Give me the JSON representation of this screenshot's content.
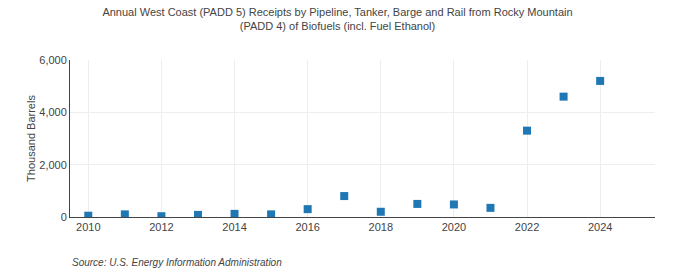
{
  "chart_data": {
    "type": "scatter",
    "title": "Annual West Coast (PADD 5) Receipts by Pipeline, Tanker, Barge and Rail from Rocky Mountain\n(PADD 4) of Biofuels (incl. Fuel Ethanol)",
    "ylabel": "Thousand Barrels",
    "annotations": [
      "Source: U.S. Energy Information Administration"
    ],
    "x": [
      2010,
      2011,
      2012,
      2013,
      2014,
      2015,
      2016,
      2017,
      2018,
      2019,
      2020,
      2021,
      2022,
      2023,
      2024
    ],
    "values": [
      50,
      100,
      30,
      80,
      120,
      100,
      300,
      800,
      200,
      500,
      480,
      350,
      3300,
      4600,
      5200
    ],
    "marker": "square",
    "xlim": [
      2009.5,
      2025.5
    ],
    "xticks": [
      2010,
      2012,
      2014,
      2016,
      2018,
      2020,
      2022,
      2024
    ],
    "ylim": [
      0,
      6000
    ],
    "yticks": [
      0,
      {
        "value": 2000,
        "label": "2,000"
      },
      {
        "value": 4000,
        "label": "4,000"
      },
      {
        "value": 6000,
        "label": "6,000"
      }
    ],
    "grid": true
  }
}
